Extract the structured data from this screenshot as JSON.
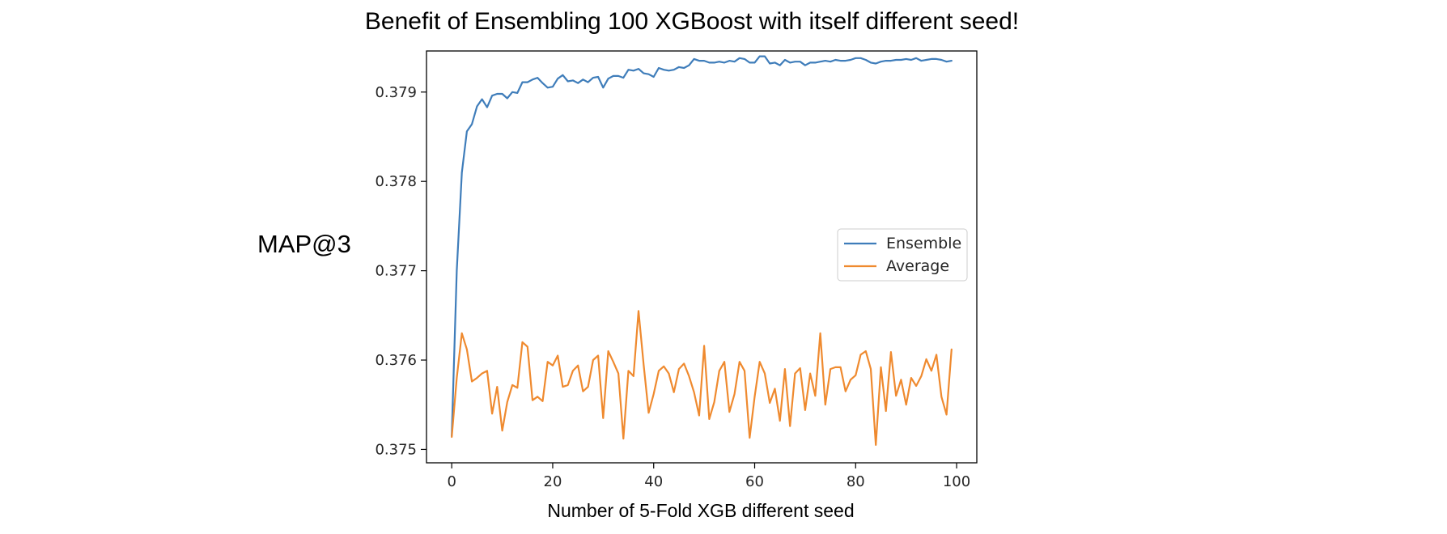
{
  "chart_data": {
    "type": "line",
    "title": "Benefit of Ensembling 100 XGBoost with itself different seed!",
    "xlabel": "Number of 5-Fold XGB different seed",
    "ylabel": "MAP@3",
    "xlim": [
      -5,
      104
    ],
    "ylim": [
      0.37485,
      0.37946
    ],
    "xticks": [
      0,
      20,
      40,
      60,
      80,
      100
    ],
    "xtick_labels": [
      "0",
      "20",
      "40",
      "60",
      "80",
      "100"
    ],
    "yticks": [
      0.375,
      0.376,
      0.377,
      0.378,
      0.379
    ],
    "ytick_labels": [
      "0.375",
      "0.376",
      "0.377",
      "0.378",
      "0.379"
    ],
    "grid": false,
    "legend_position": "center-right",
    "x": [
      0,
      1,
      2,
      3,
      4,
      5,
      6,
      7,
      8,
      9,
      10,
      11,
      12,
      13,
      14,
      15,
      16,
      17,
      18,
      19,
      20,
      21,
      22,
      23,
      24,
      25,
      26,
      27,
      28,
      29,
      30,
      31,
      32,
      33,
      34,
      35,
      36,
      37,
      38,
      39,
      40,
      41,
      42,
      43,
      44,
      45,
      46,
      47,
      48,
      49,
      50,
      51,
      52,
      53,
      54,
      55,
      56,
      57,
      58,
      59,
      60,
      61,
      62,
      63,
      64,
      65,
      66,
      67,
      68,
      69,
      70,
      71,
      72,
      73,
      74,
      75,
      76,
      77,
      78,
      79,
      80,
      81,
      82,
      83,
      84,
      85,
      86,
      87,
      88,
      89,
      90,
      91,
      92,
      93,
      94,
      95,
      96,
      97,
      98,
      99
    ],
    "series": [
      {
        "name": "Ensemble",
        "color": "#3f7dba",
        "values": [
          0.37515,
          0.377,
          0.3781,
          0.37856,
          0.37864,
          0.37884,
          0.37892,
          0.37883,
          0.37896,
          0.37898,
          0.37898,
          0.37893,
          0.379,
          0.37899,
          0.37911,
          0.37911,
          0.37914,
          0.37916,
          0.3791,
          0.37905,
          0.37906,
          0.37915,
          0.37919,
          0.37912,
          0.37913,
          0.3791,
          0.37914,
          0.37911,
          0.37916,
          0.37917,
          0.37905,
          0.37915,
          0.37918,
          0.37918,
          0.37916,
          0.37925,
          0.37924,
          0.37926,
          0.37921,
          0.3792,
          0.37917,
          0.37927,
          0.37925,
          0.37924,
          0.37925,
          0.37928,
          0.37927,
          0.3793,
          0.37937,
          0.37935,
          0.37935,
          0.37933,
          0.37933,
          0.37934,
          0.37933,
          0.37935,
          0.37934,
          0.37938,
          0.37937,
          0.37933,
          0.37933,
          0.3794,
          0.3794,
          0.37932,
          0.37933,
          0.3793,
          0.37936,
          0.37933,
          0.37934,
          0.37934,
          0.3793,
          0.37933,
          0.37933,
          0.37934,
          0.37935,
          0.37934,
          0.37936,
          0.37935,
          0.37935,
          0.37936,
          0.37938,
          0.37938,
          0.37936,
          0.37933,
          0.37932,
          0.37934,
          0.37935,
          0.37935,
          0.37936,
          0.37936,
          0.37937,
          0.37936,
          0.37938,
          0.37935,
          0.37936,
          0.37937,
          0.37937,
          0.37936,
          0.37934,
          0.37935
        ]
      },
      {
        "name": "Average",
        "color": "#ef8a2f",
        "values": [
          0.37514,
          0.3758,
          0.3763,
          0.37612,
          0.37576,
          0.3758,
          0.37585,
          0.37588,
          0.3754,
          0.3757,
          0.37521,
          0.37553,
          0.37572,
          0.37569,
          0.3762,
          0.37615,
          0.37555,
          0.37559,
          0.37554,
          0.37598,
          0.37594,
          0.37605,
          0.3757,
          0.37572,
          0.37588,
          0.37594,
          0.37565,
          0.3757,
          0.376,
          0.37605,
          0.37535,
          0.3761,
          0.37598,
          0.37585,
          0.37512,
          0.37588,
          0.37582,
          0.37655,
          0.37595,
          0.37541,
          0.37562,
          0.37588,
          0.37593,
          0.37585,
          0.37564,
          0.3759,
          0.37596,
          0.37582,
          0.37564,
          0.37538,
          0.37616,
          0.37534,
          0.37553,
          0.37588,
          0.37598,
          0.37542,
          0.37562,
          0.37598,
          0.37588,
          0.37513,
          0.37559,
          0.37598,
          0.37585,
          0.37552,
          0.37568,
          0.37532,
          0.3759,
          0.37526,
          0.37585,
          0.37591,
          0.37544,
          0.37585,
          0.3756,
          0.3763,
          0.3755,
          0.3759,
          0.37592,
          0.37592,
          0.37565,
          0.37578,
          0.37583,
          0.37606,
          0.3761,
          0.3759,
          0.37505,
          0.37592,
          0.37543,
          0.37609,
          0.3756,
          0.37578,
          0.3755,
          0.3758,
          0.37571,
          0.37582,
          0.37601,
          0.37588,
          0.37606,
          0.37559,
          0.37539,
          0.37612
        ]
      }
    ]
  }
}
